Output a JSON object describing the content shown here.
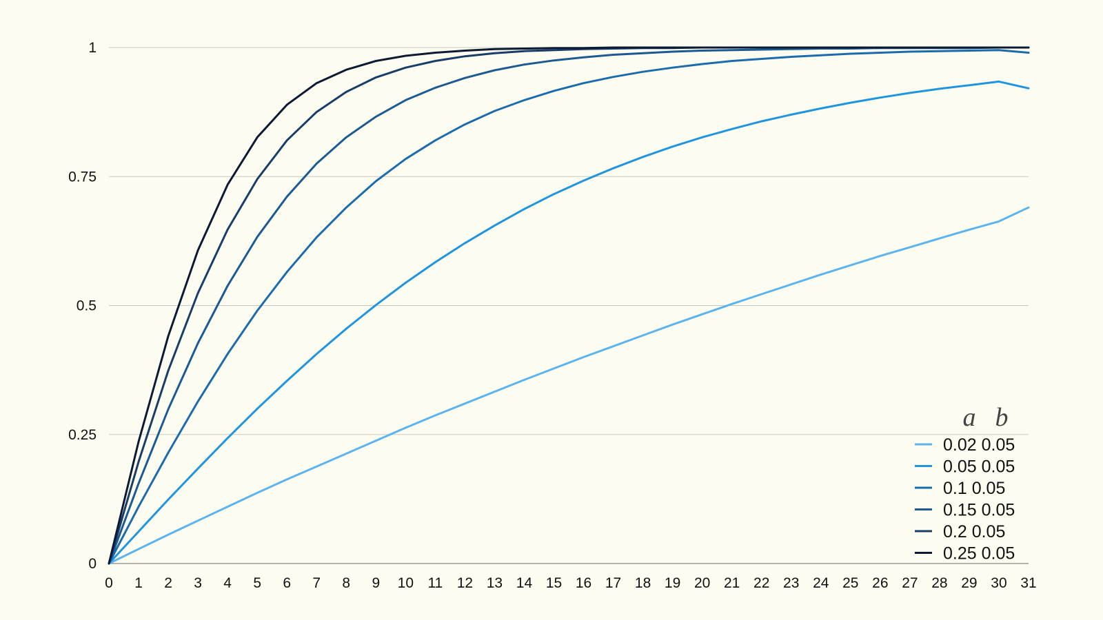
{
  "chart_data": {
    "type": "line",
    "title": "",
    "xlabel": "",
    "ylabel": "",
    "xlim": [
      0,
      31
    ],
    "ylim": [
      0,
      1
    ],
    "x_ticks": [
      "0",
      "1",
      "2",
      "3",
      "4",
      "5",
      "6",
      "7",
      "8",
      "9",
      "10",
      "11",
      "12",
      "13",
      "14",
      "15",
      "16",
      "17",
      "18",
      "19",
      "20",
      "21",
      "22",
      "23",
      "24",
      "25",
      "26",
      "27",
      "28",
      "29",
      "30",
      "31"
    ],
    "y_ticks": [
      "0",
      "0.25",
      "0.5",
      "0.75",
      "1"
    ],
    "grid": "horizontal",
    "legend": {
      "placement": "bottom-right",
      "headers": [
        "a",
        "b"
      ]
    },
    "x": [
      0,
      1,
      2,
      3,
      4,
      5,
      6,
      7,
      8,
      9,
      10,
      11,
      12,
      13,
      14,
      15,
      16,
      17,
      18,
      19,
      20,
      21,
      22,
      23,
      24,
      25,
      26,
      27,
      28,
      29,
      30,
      31
    ],
    "series": [
      {
        "name": "0.02 0.05",
        "color": "#5bb4ee",
        "values": [
          0,
          0.028,
          0.056,
          0.083,
          0.11,
          0.137,
          0.163,
          0.188,
          0.213,
          0.238,
          0.263,
          0.287,
          0.31,
          0.333,
          0.356,
          0.378,
          0.4,
          0.421,
          0.442,
          0.463,
          0.483,
          0.503,
          0.522,
          0.541,
          0.56,
          0.578,
          0.596,
          0.613,
          0.63,
          0.647,
          0.663,
          0.69
        ]
      },
      {
        "name": "0.05 0.05",
        "color": "#1f95e0",
        "values": [
          0,
          0.062,
          0.124,
          0.184,
          0.243,
          0.3,
          0.354,
          0.406,
          0.455,
          0.501,
          0.544,
          0.584,
          0.621,
          0.655,
          0.687,
          0.716,
          0.742,
          0.766,
          0.788,
          0.808,
          0.826,
          0.842,
          0.857,
          0.87,
          0.882,
          0.893,
          0.903,
          0.912,
          0.92,
          0.927,
          0.934,
          0.921
        ]
      },
      {
        "name": "0.1 0.05",
        "color": "#1c6cad",
        "values": [
          0,
          0.11,
          0.215,
          0.314,
          0.406,
          0.49,
          0.565,
          0.632,
          0.69,
          0.741,
          0.784,
          0.82,
          0.851,
          0.877,
          0.898,
          0.916,
          0.931,
          0.943,
          0.953,
          0.961,
          0.968,
          0.974,
          0.978,
          0.982,
          0.985,
          0.988,
          0.99,
          0.992,
          0.993,
          0.994,
          0.995,
          0.99
        ]
      },
      {
        "name": "0.15 0.05",
        "color": "#1b5a92",
        "values": [
          0,
          0.155,
          0.299,
          0.427,
          0.538,
          0.633,
          0.711,
          0.775,
          0.826,
          0.866,
          0.898,
          0.922,
          0.941,
          0.956,
          0.967,
          0.975,
          0.981,
          0.986,
          0.989,
          0.992,
          0.994,
          0.995,
          0.996,
          0.997,
          0.998,
          0.998,
          0.999,
          0.999,
          0.999,
          0.999,
          1.0,
          1.0
        ]
      },
      {
        "name": "0.2 0.05",
        "color": "#193d69",
        "values": [
          0,
          0.197,
          0.374,
          0.524,
          0.647,
          0.745,
          0.82,
          0.875,
          0.914,
          0.942,
          0.961,
          0.974,
          0.983,
          0.989,
          0.993,
          0.995,
          0.997,
          0.998,
          0.999,
          0.999,
          1.0,
          1.0,
          1.0,
          1.0,
          1.0,
          1.0,
          1.0,
          1.0,
          1.0,
          1.0,
          1.0,
          1.0
        ]
      },
      {
        "name": "0.25 0.05",
        "color": "#0c1a33",
        "values": [
          0,
          0.236,
          0.441,
          0.607,
          0.734,
          0.826,
          0.889,
          0.931,
          0.957,
          0.974,
          0.984,
          0.99,
          0.994,
          0.997,
          0.998,
          0.999,
          0.999,
          1.0,
          1.0,
          1.0,
          1.0,
          1.0,
          1.0,
          1.0,
          1.0,
          1.0,
          1.0,
          1.0,
          1.0,
          1.0,
          1.0,
          1.0
        ]
      }
    ]
  }
}
